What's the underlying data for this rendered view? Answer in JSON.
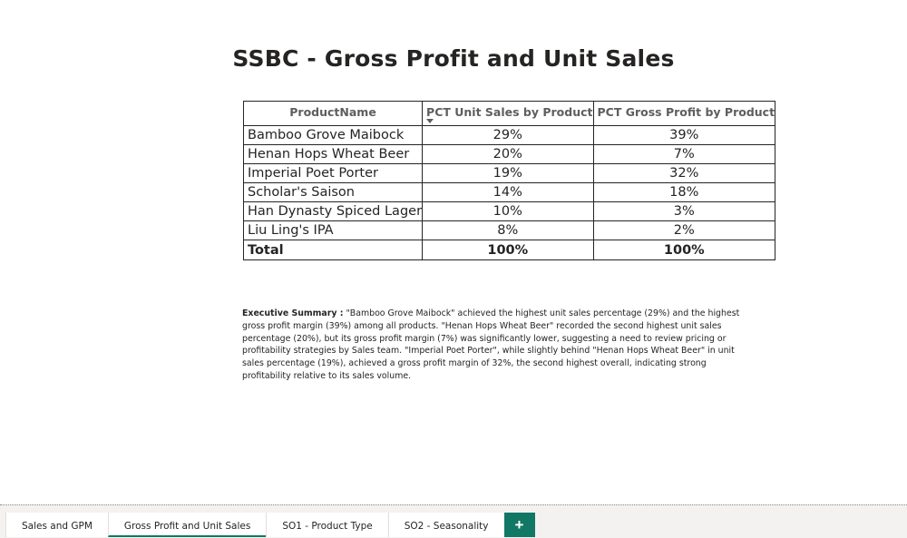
{
  "report": {
    "title": "SSBC - Gross Profit and Unit Sales"
  },
  "table": {
    "headers": [
      "ProductName",
      "PCT Unit Sales by Product",
      "PCT Gross Profit by Product"
    ],
    "sorted_column": "PCT Unit Sales by Product",
    "rows": [
      {
        "name": "Bamboo Grove Maibock",
        "unit_sales": "29%",
        "gross_profit": "39%"
      },
      {
        "name": "Henan Hops Wheat Beer",
        "unit_sales": "20%",
        "gross_profit": "7%"
      },
      {
        "name": "Imperial Poet Porter",
        "unit_sales": "19%",
        "gross_profit": "32%"
      },
      {
        "name": "Scholar's Saison",
        "unit_sales": "14%",
        "gross_profit": "18%"
      },
      {
        "name": "Han Dynasty Spiced Lager",
        "unit_sales": "10%",
        "gross_profit": "3%"
      },
      {
        "name": "Liu Ling's IPA",
        "unit_sales": "8%",
        "gross_profit": "2%"
      }
    ],
    "total": {
      "label": "Total",
      "unit_sales": "100%",
      "gross_profit": "100%"
    }
  },
  "summary": {
    "label": "Executive Summary :",
    "text": " \"Bamboo Grove Maibock\" achieved the highest unit sales percentage (29%) and the highest gross profit margin (39%) among all products.   \"Henan Hops Wheat Beer\" recorded the second highest unit sales percentage (20%), but its gross profit margin (7%) was significantly lower, suggesting a need to review pricing or profitability strategies by Sales team.   \"Imperial Poet Porter\", while slightly behind \"Henan Hops Wheat Beer\" in unit sales percentage (19%), achieved a gross profit margin of 32%, the second highest overall, indicating strong profitability relative to its sales volume."
  },
  "tabs": {
    "items": [
      {
        "label": "Sales and GPM",
        "active": false
      },
      {
        "label": "Gross Profit and Unit Sales",
        "active": true
      },
      {
        "label": "SO1 - Product Type",
        "active": false
      },
      {
        "label": "SO2 - Seasonality",
        "active": false
      }
    ],
    "add_label": "+"
  },
  "colors": {
    "accent": "#117865",
    "text": "#252423",
    "header_text": "#605e5c"
  }
}
